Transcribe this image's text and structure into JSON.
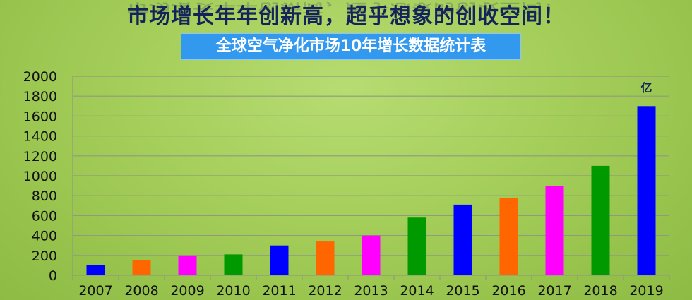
{
  "headline": "市场增长年年创新高，超乎想象的创收空间！",
  "chart_data": {
    "type": "bar",
    "title": "全球空气净化市场10年增长数据统计表",
    "unit_label": "亿",
    "categories": [
      "2007",
      "2008",
      "2009",
      "2010",
      "2011",
      "2012",
      "2013",
      "2014",
      "2015",
      "2016",
      "2017",
      "2018",
      "2019"
    ],
    "values": [
      100,
      150,
      200,
      210,
      300,
      340,
      400,
      580,
      710,
      780,
      900,
      1100,
      1700
    ],
    "colors": [
      "#0000ff",
      "#ff6600",
      "#ff00ff",
      "#009900",
      "#0000ff",
      "#ff6600",
      "#ff00ff",
      "#009900",
      "#0000ff",
      "#ff6600",
      "#ff00ff",
      "#009900",
      "#0000ff"
    ],
    "ylim": [
      0,
      2000
    ],
    "yticks": [
      "0",
      "200",
      "400",
      "600",
      "800",
      "1000",
      "1200",
      "1400",
      "1600",
      "1800",
      "2000"
    ],
    "grid": true,
    "legend": "none"
  }
}
